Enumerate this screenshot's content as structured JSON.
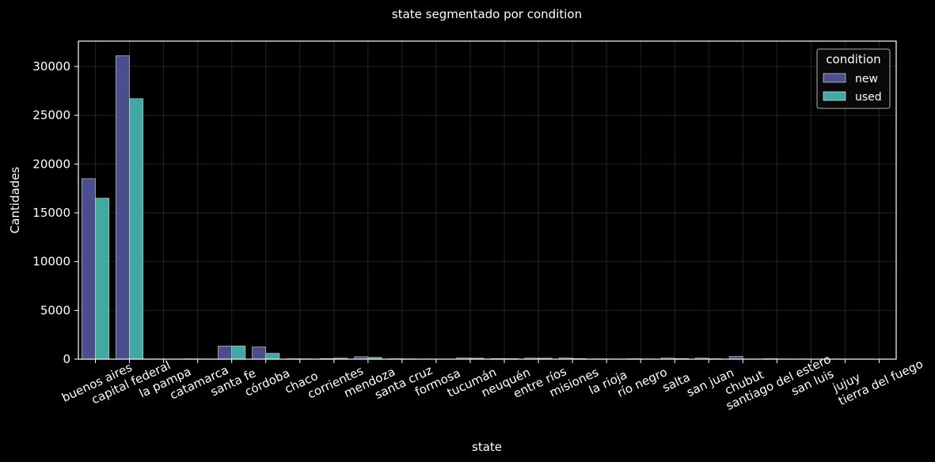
{
  "chart_data": {
    "type": "bar",
    "title": "state segmentado por condition",
    "xlabel": "state",
    "ylabel": "Cantidades",
    "ylim": [
      0,
      32600
    ],
    "yticks": [
      0,
      5000,
      10000,
      15000,
      20000,
      25000,
      30000
    ],
    "grid": true,
    "legend": {
      "title": "condition",
      "placement": "top-right"
    },
    "categories": [
      "buenos aires",
      "capital federal",
      "la pampa",
      "catamarca",
      "santa fe",
      "córdoba",
      "chaco",
      "corrientes",
      "mendoza",
      "santa cruz",
      "formosa",
      "tucumán",
      "neuquén",
      "entre ríos",
      "misiones",
      "la rioja",
      "río negro",
      "salta",
      "san juan",
      "chubut",
      "santiago del estero",
      "san luis",
      "jujuy",
      "tierra del fuego"
    ],
    "series": [
      {
        "name": "new",
        "color": "#4a4e8a",
        "values": [
          18500,
          31100,
          20,
          30,
          1350,
          1250,
          40,
          60,
          250,
          40,
          20,
          120,
          60,
          100,
          120,
          30,
          40,
          100,
          100,
          280,
          40,
          20,
          20,
          10
        ]
      },
      {
        "name": "used",
        "color": "#3fa9a2",
        "values": [
          16500,
          26700,
          10,
          20,
          1350,
          600,
          30,
          100,
          180,
          30,
          10,
          100,
          50,
          100,
          60,
          20,
          30,
          60,
          40,
          20,
          20,
          10,
          10,
          5
        ]
      }
    ]
  }
}
